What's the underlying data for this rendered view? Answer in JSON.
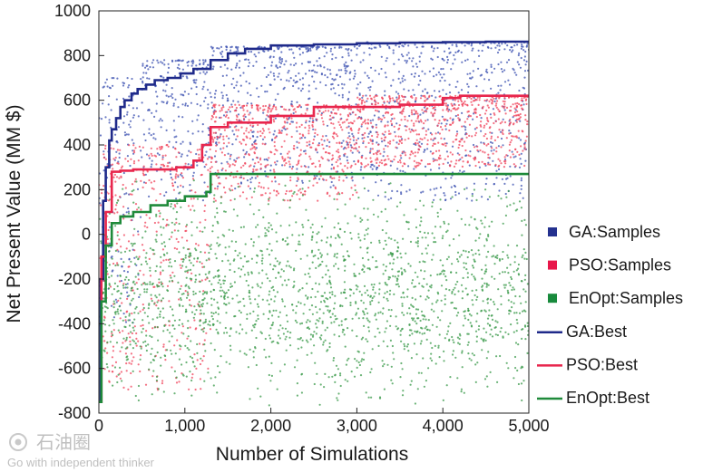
{
  "chart_data": {
    "type": "scatter",
    "xlabel": "Number of Simulations",
    "ylabel": "Net Present Value (MM $)",
    "xlim": [
      0,
      5000
    ],
    "ylim": [
      -800,
      1000
    ],
    "xticks": [
      0,
      1000,
      2000,
      3000,
      4000,
      5000
    ],
    "xtick_labels": [
      "0",
      "1,000",
      "2,000",
      "3,000",
      "4,000",
      "5,000"
    ],
    "yticks": [
      -800,
      -600,
      -400,
      -200,
      0,
      200,
      400,
      600,
      800,
      1000
    ],
    "ytick_labels": [
      "-800",
      "-600",
      "-400",
      "-200",
      "0",
      "200",
      "400",
      "600",
      "800",
      "1000"
    ],
    "grid": false,
    "legend_position": "right",
    "series": [
      {
        "name": "GA:Samples",
        "kind": "scatter",
        "color": "#3a4fb0",
        "count_per_legend_marker": 1,
        "bands": [
          {
            "x": [
              0,
              500
            ],
            "y": [
              -400,
              700
            ]
          },
          {
            "x": [
              500,
              1300
            ],
            "y": [
              150,
              780
            ]
          },
          {
            "x": [
              1300,
              3000
            ],
            "y": [
              200,
              840
            ]
          },
          {
            "x": [
              3000,
              5000
            ],
            "y": [
              150,
              860
            ]
          }
        ]
      },
      {
        "name": "PSO:Samples",
        "kind": "scatter",
        "color": "#f0415a",
        "bands": [
          {
            "x": [
              0,
              1300
            ],
            "y": [
              -700,
              400
            ]
          },
          {
            "x": [
              1300,
              3000
            ],
            "y": [
              150,
              580
            ]
          },
          {
            "x": [
              3000,
              5000
            ],
            "y": [
              300,
              620
            ]
          }
        ]
      },
      {
        "name": "EnOpt:Samples",
        "kind": "scatter",
        "color": "#3a9a4a",
        "bands": [
          {
            "x": [
              0,
              1300
            ],
            "y": [
              -780,
              250
            ]
          },
          {
            "x": [
              1300,
              5000
            ],
            "y": [
              -780,
              270
            ]
          }
        ]
      },
      {
        "name": "GA:Best",
        "kind": "step",
        "color": "#1f2a8a",
        "x": [
          0,
          20,
          50,
          80,
          120,
          150,
          200,
          250,
          300,
          380,
          450,
          550,
          650,
          800,
          950,
          1100,
          1300,
          1500,
          1700,
          2000,
          2500,
          3000,
          3500,
          4000,
          4500,
          5000
        ],
        "y": [
          -750,
          -200,
          150,
          300,
          420,
          470,
          520,
          570,
          600,
          630,
          650,
          670,
          690,
          700,
          720,
          740,
          780,
          810,
          830,
          845,
          850,
          855,
          858,
          860,
          862,
          862
        ]
      },
      {
        "name": "PSO:Best",
        "kind": "step",
        "color": "#e8264d",
        "x": [
          0,
          30,
          80,
          150,
          250,
          400,
          900,
          1100,
          1200,
          1300,
          1500,
          2000,
          2500,
          3500,
          4000,
          4200,
          5000
        ],
        "y": [
          -750,
          -100,
          100,
          280,
          285,
          290,
          300,
          330,
          400,
          480,
          500,
          530,
          570,
          580,
          610,
          620,
          620
        ]
      },
      {
        "name": "EnOpt:Best",
        "kind": "step",
        "color": "#1f8a3a",
        "x": [
          0,
          30,
          80,
          150,
          250,
          400,
          600,
          800,
          1000,
          1250,
          1300,
          5000
        ],
        "y": [
          -750,
          -300,
          -50,
          50,
          80,
          100,
          130,
          150,
          170,
          190,
          270,
          270
        ]
      }
    ]
  },
  "legend": {
    "items": [
      {
        "label": "GA:Samples",
        "symbol": "square",
        "color": "#24318f"
      },
      {
        "label": "PSO:Samples",
        "symbol": "square",
        "color": "#e8174a"
      },
      {
        "label": "EnOpt:Samples",
        "symbol": "square",
        "color": "#188a3c"
      },
      {
        "label": "GA:Best",
        "symbol": "line",
        "color": "#1f2a8a"
      },
      {
        "label": "PSO:Best",
        "symbol": "line",
        "color": "#e8264d"
      },
      {
        "label": "EnOpt:Best",
        "symbol": "line",
        "color": "#1f8a3a"
      }
    ]
  },
  "watermark": {
    "logo_text": "石油圈",
    "tagline": "Go with independent thinker"
  }
}
